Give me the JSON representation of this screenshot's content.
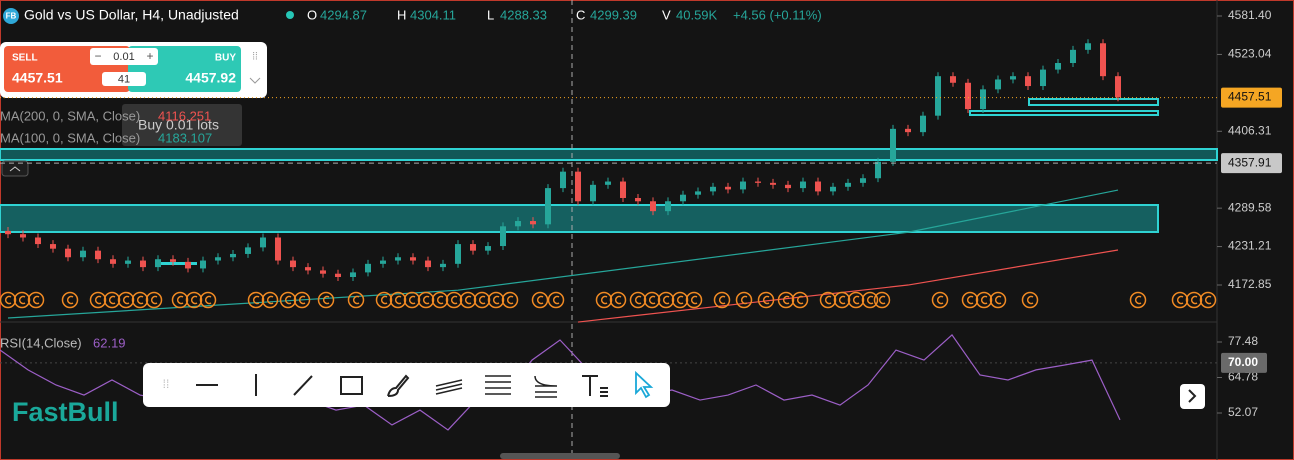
{
  "header": {
    "symbol": "Gold vs US Dollar, H4, Unadjusted",
    "ohlc": [
      {
        "key": "O",
        "value": "4294.87"
      },
      {
        "key": "H",
        "value": "4304.11"
      },
      {
        "key": "L",
        "value": "4288.33"
      },
      {
        "key": "C",
        "value": "4299.39"
      },
      {
        "key": "V",
        "value": "40.59K"
      }
    ],
    "change": "+4.56 (+0.11%)"
  },
  "order_panel": {
    "sell_label": "SELL",
    "sell_price": "4457.51",
    "quantity": "0.01",
    "lots": "41",
    "buy_label": "BUY",
    "buy_price": "4457.92",
    "tooltip": "Buy 0.01 lots"
  },
  "indicators": [
    {
      "name": "MA(200, 0, SMA, Close)",
      "value": "4116.251",
      "color": "#ef5350"
    },
    {
      "name": "MA(100, 0, SMA, Close)",
      "value": "4183.107",
      "color": "#26a69a"
    }
  ],
  "price_axis": {
    "ticks": [
      {
        "value": 4581.4,
        "label": "4581.40"
      },
      4523.04,
      4406.31,
      4289.58,
      4231.21,
      4172.85
    ],
    "last_price": 4457.51,
    "crosshair_price": 4357.91
  },
  "candles": [
    [
      4255,
      4261,
      4244,
      4250
    ],
    [
      4250,
      4256,
      4239,
      4245
    ],
    [
      4245,
      4251,
      4229,
      4235
    ],
    [
      4235,
      4241,
      4222,
      4228
    ],
    [
      4228,
      4234,
      4209,
      4215
    ],
    [
      4215,
      4231,
      4209,
      4225
    ],
    [
      4225,
      4231,
      4206,
      4212
    ],
    [
      4212,
      4218,
      4199,
      4205
    ],
    [
      4205,
      4216,
      4199,
      4210
    ],
    [
      4210,
      4216,
      4194,
      4200
    ],
    [
      4200,
      4218,
      4194,
      4212
    ],
    [
      4212,
      4218,
      4202,
      4208
    ],
    [
      4208,
      4214,
      4192,
      4198
    ],
    [
      4198,
      4216,
      4192,
      4210
    ],
    [
      4210,
      4221,
      4204,
      4215
    ],
    [
      4215,
      4226,
      4209,
      4220
    ],
    [
      4220,
      4236,
      4214,
      4230
    ],
    [
      4230,
      4251,
      4224,
      4245
    ],
    [
      4245,
      4251,
      4204,
      4210
    ],
    [
      4210,
      4216,
      4194,
      4200
    ],
    [
      4200,
      4206,
      4189,
      4195
    ],
    [
      4195,
      4201,
      4184,
      4190
    ],
    [
      4190,
      4196,
      4179,
      4185
    ],
    [
      4185,
      4198,
      4179,
      4192
    ],
    [
      4192,
      4211,
      4186,
      4205
    ],
    [
      4205,
      4216,
      4199,
      4210
    ],
    [
      4210,
      4221,
      4204,
      4215
    ],
    [
      4215,
      4221,
      4204,
      4210
    ],
    [
      4210,
      4216,
      4194,
      4200
    ],
    [
      4200,
      4211,
      4194,
      4205
    ],
    [
      4205,
      4241,
      4199,
      4235
    ],
    [
      4235,
      4241,
      4219,
      4225
    ],
    [
      4225,
      4238,
      4219,
      4232
    ],
    [
      4232,
      4268,
      4226,
      4262
    ],
    [
      4262,
      4276,
      4256,
      4270
    ],
    [
      4270,
      4276,
      4259,
      4265
    ],
    [
      4265,
      4326,
      4259,
      4320
    ],
    [
      4320,
      4351,
      4314,
      4345
    ],
    [
      4345,
      4351,
      4294,
      4300
    ],
    [
      4300,
      4331,
      4294,
      4325
    ],
    [
      4325,
      4336,
      4319,
      4330
    ],
    [
      4330,
      4336,
      4299,
      4305
    ],
    [
      4305,
      4311,
      4294,
      4300
    ],
    [
      4300,
      4306,
      4279,
      4285
    ],
    [
      4285,
      4306,
      4279,
      4300
    ],
    [
      4300,
      4316,
      4294,
      4310
    ],
    [
      4310,
      4321,
      4304,
      4315
    ],
    [
      4315,
      4328,
      4309,
      4322
    ],
    [
      4322,
      4328,
      4312,
      4318
    ],
    [
      4318,
      4336,
      4312,
      4330
    ],
    [
      4330,
      4336,
      4322,
      4328
    ],
    [
      4328,
      4334,
      4319,
      4325
    ],
    [
      4325,
      4331,
      4314,
      4320
    ],
    [
      4320,
      4336,
      4314,
      4330
    ],
    [
      4330,
      4336,
      4309,
      4315
    ],
    [
      4315,
      4328,
      4309,
      4322
    ],
    [
      4322,
      4334,
      4316,
      4328
    ],
    [
      4328,
      4341,
      4322,
      4335
    ],
    [
      4335,
      4366,
      4329,
      4360
    ],
    [
      4360,
      4416,
      4354,
      4410
    ],
    [
      4410,
      4416,
      4399,
      4405
    ],
    [
      4405,
      4436,
      4399,
      4430
    ],
    [
      4430,
      4496,
      4424,
      4490
    ],
    [
      4490,
      4496,
      4474,
      4480
    ],
    [
      4480,
      4486,
      4434,
      4440
    ],
    [
      4440,
      4476,
      4434,
      4470
    ],
    [
      4470,
      4491,
      4464,
      4485
    ],
    [
      4485,
      4496,
      4479,
      4490
    ],
    [
      4490,
      4496,
      4469,
      4475
    ],
    [
      4475,
      4506,
      4469,
      4500
    ],
    [
      4500,
      4516,
      4494,
      4510
    ],
    [
      4510,
      4536,
      4504,
      4530
    ],
    [
      4530,
      4546,
      4524,
      4540
    ],
    [
      4540,
      4546,
      4484,
      4490
    ],
    [
      4490,
      4496,
      4452,
      4458
    ]
  ],
  "moving_averages": [
    {
      "color": "#ef5350",
      "index": [
        38,
        60,
        74
      ],
      "values": [
        4116.6,
        4172.8,
        4226
      ]
    },
    {
      "color": "#26a69a",
      "index": [
        0,
        30,
        60,
        74
      ],
      "values": [
        4122.7,
        4165,
        4253,
        4317
      ]
    }
  ],
  "rsi_pane": {
    "label": "RSI(14,Close)",
    "value": "62.19",
    "ticks": [
      77.48,
      64.78,
      52.07
    ],
    "level": {
      "value": 70,
      "label": "70.00"
    },
    "color": "#9c5fc7",
    "values": [
      74.6,
      67.5,
      62.1,
      58.5,
      63.9,
      58.5,
      56.7,
      60.3,
      58.5,
      63.9,
      54.9,
      56.7,
      53.1,
      54.9,
      47.8,
      53.1,
      46.0,
      56.7,
      58.5,
      71.0,
      78.2,
      67.5,
      62.1,
      58.5,
      60.3,
      56.7,
      58.5,
      62.1,
      56.7,
      58.5,
      54.9,
      62.1,
      74.6,
      71.0,
      80.0,
      65.7,
      63.9,
      67.5,
      69.2,
      71.0,
      49.6
    ]
  },
  "watermark": "FastBull"
}
